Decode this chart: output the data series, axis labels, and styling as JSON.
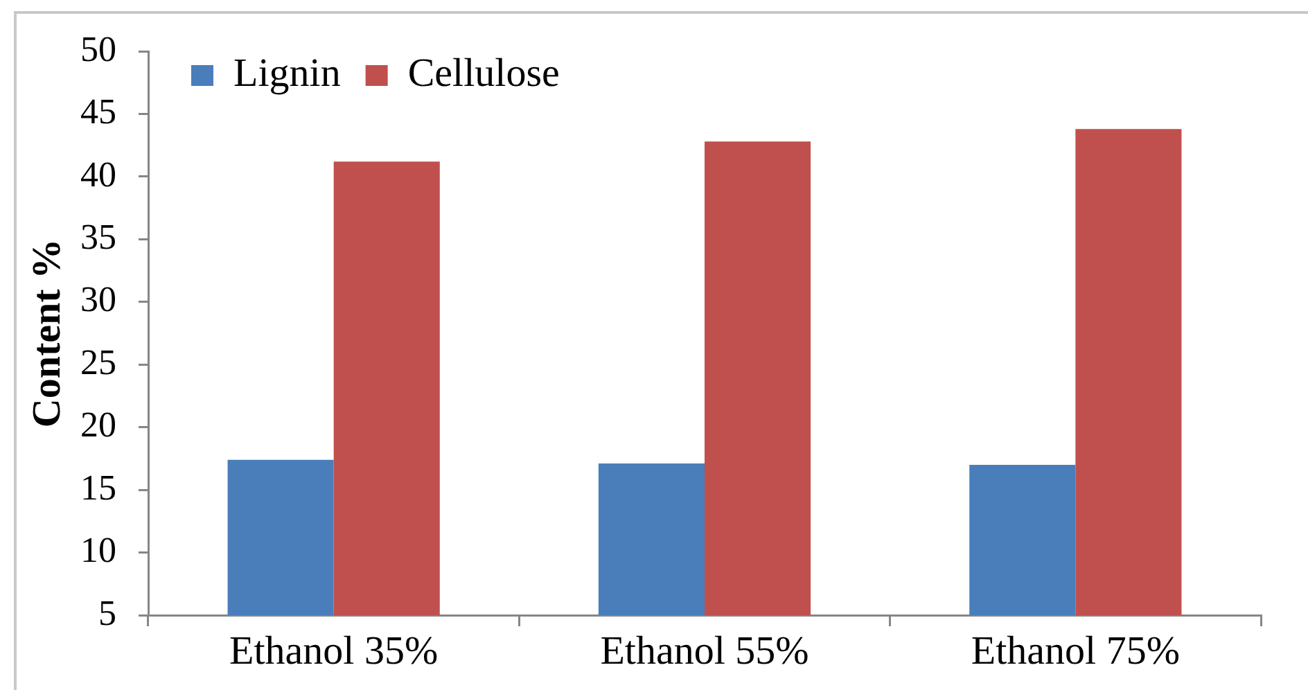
{
  "chart_data": {
    "type": "bar",
    "ylabel": "Content %",
    "categories": [
      "Ethanol 35%",
      "Ethanol 55%",
      "Ethanol 75%"
    ],
    "series": [
      {
        "name": "Lignin",
        "color": "#4a7ebb",
        "values": [
          17.4,
          17.1,
          17.0
        ]
      },
      {
        "name": "Cellulose",
        "color": "#c0504d",
        "values": [
          41.2,
          42.8,
          43.8
        ]
      }
    ],
    "ylim": [
      5,
      50
    ],
    "yticks": [
      5,
      10,
      15,
      20,
      25,
      30,
      35,
      40,
      45,
      50
    ],
    "grid": false,
    "legend": "top left"
  }
}
